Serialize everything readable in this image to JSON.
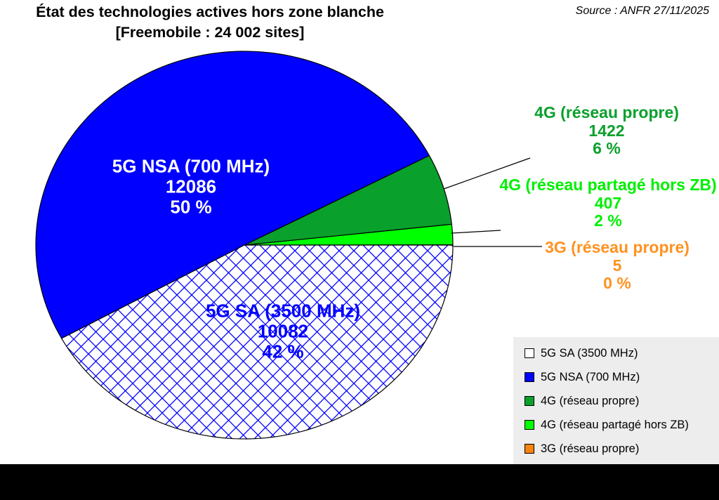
{
  "header": {
    "title_line1": "État des technologies actives hors zone blanche",
    "title_line2": "[Freemobile : 24 002 sites]",
    "source": "Source : ANFR 27/11/2025"
  },
  "chart_data": {
    "type": "pie",
    "title": "État des technologies actives hors zone blanche [Freemobile : 24 002 sites]",
    "total_sites": 24002,
    "start_angle_deg": 0,
    "direction": "counterclockwise",
    "legend_position": "bottom-right",
    "outline_color": "#000000",
    "hatch_color": "#0000ff",
    "slices": [
      {
        "label": "5G SA (3500 MHz)",
        "value": 10082,
        "value_label": "10082",
        "pct": 42,
        "pct_label": "42 %",
        "color": "#ffffff",
        "hatch": "blue-crosshatch",
        "text_color": "#0000ff"
      },
      {
        "label": "5G NSA (700 MHz)",
        "value": 12086,
        "value_label": "12086",
        "pct": 50,
        "pct_label": "50 %",
        "color": "#0000ff",
        "hatch": null,
        "text_color": "#ffffff"
      },
      {
        "label": "4G (réseau propre)",
        "value": 1422,
        "value_label": "1422",
        "pct": 6,
        "pct_label": "6 %",
        "color": "#0aa02c",
        "hatch": null,
        "text_color": "#0aa02c"
      },
      {
        "label": "4G (réseau partagé hors ZB)",
        "value": 407,
        "value_label": "407",
        "pct": 2,
        "pct_label": "2 %",
        "color": "#00ff00",
        "hatch": null,
        "text_color": "#00ef00"
      },
      {
        "label": "3G (réseau propre)",
        "value": 5,
        "value_label": "5",
        "pct": 0,
        "pct_label": "0 %",
        "color": "#f8840f",
        "hatch": null,
        "text_color": "#ff9220"
      }
    ]
  },
  "colors": {
    "legend_bg": "#ededed",
    "bottom_bar": "#000000",
    "title_text": "#000000"
  }
}
